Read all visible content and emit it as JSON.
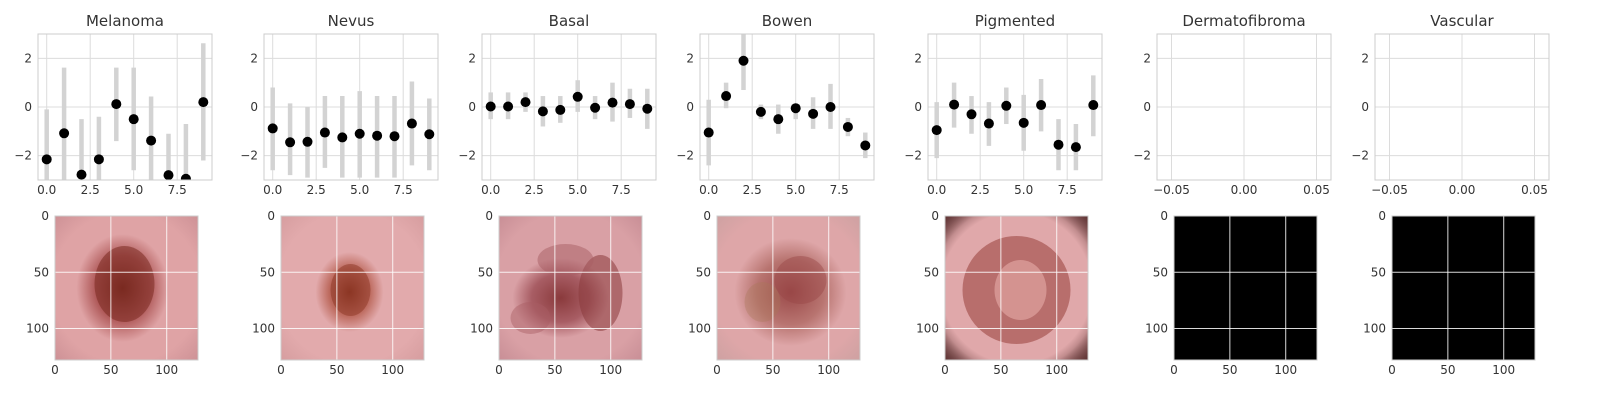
{
  "chart_data": [
    {
      "type": "scatter",
      "title": "Melanoma",
      "xlim": [
        -0.5,
        9.5
      ],
      "ylim": [
        -3,
        3
      ],
      "xticks": [
        0,
        2.5,
        5,
        7.5
      ],
      "xtick_labels": [
        "0.0",
        "2.5",
        "5.0",
        "7.5"
      ],
      "yticks": [
        -2,
        0,
        2
      ],
      "ytick_labels": [
        "−2",
        "0",
        "2"
      ],
      "x": [
        0,
        1,
        2,
        3,
        4,
        5,
        6,
        7,
        8,
        9
      ],
      "y": [
        -2.15,
        -1.08,
        -2.78,
        -2.15,
        0.12,
        -0.5,
        -1.38,
        -2.8,
        -2.95,
        0.2
      ],
      "err_low": [
        -3.0,
        -3.0,
        -3.0,
        -3.0,
        -1.4,
        -2.6,
        -3.0,
        -3.0,
        -3.0,
        -2.2
      ],
      "err_high": [
        -0.1,
        1.62,
        -0.5,
        -0.4,
        1.62,
        1.62,
        0.43,
        -1.1,
        -0.7,
        2.62
      ],
      "grid": true,
      "point_color": "#000000",
      "errorbar_color": "#d3d3d3"
    },
    {
      "type": "scatter",
      "title": "Nevus",
      "xlim": [
        -0.5,
        9.5
      ],
      "ylim": [
        -3,
        3
      ],
      "xticks": [
        0,
        2.5,
        5,
        7.5
      ],
      "xtick_labels": [
        "0.0",
        "2.5",
        "5.0",
        "7.5"
      ],
      "yticks": [
        -2,
        0,
        2
      ],
      "ytick_labels": [
        "−2",
        "0",
        "2"
      ],
      "x": [
        0,
        1,
        2,
        3,
        4,
        5,
        6,
        7,
        8,
        9
      ],
      "y": [
        -0.88,
        -1.45,
        -1.43,
        -1.05,
        -1.25,
        -1.1,
        -1.18,
        -1.2,
        -0.68,
        -1.12
      ],
      "err_low": [
        -2.6,
        -2.8,
        -2.9,
        -2.5,
        -2.9,
        -2.9,
        -2.9,
        -2.9,
        -2.4,
        -2.6
      ],
      "err_high": [
        0.8,
        0.15,
        0.0,
        0.45,
        0.45,
        0.65,
        0.45,
        0.45,
        1.05,
        0.35
      ],
      "grid": true,
      "point_color": "#000000",
      "errorbar_color": "#d3d3d3"
    },
    {
      "type": "scatter",
      "title": "Basal",
      "xlim": [
        -0.5,
        9.5
      ],
      "ylim": [
        -3,
        3
      ],
      "xticks": [
        0,
        2.5,
        5,
        7.5
      ],
      "xtick_labels": [
        "0.0",
        "2.5",
        "5.0",
        "7.5"
      ],
      "yticks": [
        -2,
        0,
        2
      ],
      "ytick_labels": [
        "−2",
        "0",
        "2"
      ],
      "x": [
        0,
        1,
        2,
        3,
        4,
        5,
        6,
        7,
        8,
        9
      ],
      "y": [
        0.02,
        0.02,
        0.2,
        -0.18,
        -0.12,
        0.42,
        -0.03,
        0.18,
        0.12,
        -0.07
      ],
      "err_low": [
        -0.5,
        -0.5,
        -0.2,
        -0.8,
        -0.65,
        -0.2,
        -0.5,
        -0.6,
        -0.45,
        -0.9
      ],
      "err_high": [
        0.6,
        0.6,
        0.6,
        0.45,
        0.45,
        1.1,
        0.45,
        1.0,
        0.75,
        0.75
      ],
      "grid": true,
      "point_color": "#000000",
      "errorbar_color": "#d3d3d3"
    },
    {
      "type": "scatter",
      "title": "Bowen",
      "xlim": [
        -0.5,
        9.5
      ],
      "ylim": [
        -3,
        3
      ],
      "xticks": [
        0,
        2.5,
        5,
        7.5
      ],
      "xtick_labels": [
        "0.0",
        "2.5",
        "5.0",
        "7.5"
      ],
      "yticks": [
        -2,
        0,
        2
      ],
      "ytick_labels": [
        "−2",
        "0",
        "2"
      ],
      "x": [
        0,
        1,
        2,
        3,
        4,
        5,
        6,
        7,
        8,
        9
      ],
      "y": [
        -1.05,
        0.45,
        1.9,
        -0.2,
        -0.5,
        -0.05,
        -0.28,
        0.0,
        -0.82,
        -1.58
      ],
      "err_low": [
        -2.4,
        -0.05,
        0.7,
        -0.5,
        -1.1,
        -0.5,
        -0.9,
        -0.9,
        -1.2,
        -2.1
      ],
      "err_high": [
        0.3,
        1.0,
        3.0,
        0.1,
        0.1,
        0.05,
        0.4,
        0.95,
        -0.45,
        -1.05
      ],
      "grid": true,
      "point_color": "#000000",
      "errorbar_color": "#d3d3d3"
    },
    {
      "type": "scatter",
      "title": "Pigmented",
      "xlim": [
        -0.5,
        9.5
      ],
      "ylim": [
        -3,
        3
      ],
      "xticks": [
        0,
        2.5,
        5,
        7.5
      ],
      "xtick_labels": [
        "0.0",
        "2.5",
        "5.0",
        "7.5"
      ],
      "yticks": [
        -2,
        0,
        2
      ],
      "ytick_labels": [
        "−2",
        "0",
        "2"
      ],
      "x": [
        0,
        1,
        2,
        3,
        4,
        5,
        6,
        7,
        8,
        9
      ],
      "y": [
        -0.95,
        0.1,
        -0.3,
        -0.68,
        0.05,
        -0.65,
        0.08,
        -1.55,
        -1.65,
        0.08
      ],
      "err_low": [
        -2.1,
        -0.85,
        -1.1,
        -1.6,
        -0.7,
        -1.8,
        -1.0,
        -2.6,
        -2.6,
        -1.2
      ],
      "err_high": [
        0.2,
        1.0,
        0.45,
        0.2,
        0.8,
        0.5,
        1.15,
        -0.5,
        -0.7,
        1.3
      ],
      "grid": true,
      "point_color": "#000000",
      "errorbar_color": "#d3d3d3"
    },
    {
      "type": "scatter",
      "title": "Dermatofibroma",
      "xlim": [
        -0.06,
        0.06
      ],
      "ylim": [
        -3,
        3
      ],
      "xticks": [
        -0.05,
        0,
        0.05
      ],
      "xtick_labels": [
        "−0.05",
        "0.00",
        "0.05"
      ],
      "yticks": [
        -2,
        0,
        2
      ],
      "ytick_labels": [
        "−2",
        "0",
        "2"
      ],
      "x": [],
      "y": [],
      "err_low": [],
      "err_high": [],
      "grid": true
    },
    {
      "type": "scatter",
      "title": "Vascular",
      "xlim": [
        -0.06,
        0.06
      ],
      "ylim": [
        -3,
        3
      ],
      "xticks": [
        -0.05,
        0,
        0.05
      ],
      "xtick_labels": [
        "−0.05",
        "0.00",
        "0.05"
      ],
      "yticks": [
        -2,
        0,
        2
      ],
      "ytick_labels": [
        "−2",
        "0",
        "2"
      ],
      "x": [],
      "y": [],
      "err_low": [],
      "err_high": [],
      "grid": true
    }
  ],
  "images": [
    {
      "kind": "lesion",
      "description": "pink skin with dark brown oval lesion",
      "xlim": [
        0,
        128
      ],
      "ylim": [
        128,
        0
      ],
      "xticks": [
        0,
        50,
        100
      ],
      "xtick_labels": [
        "0",
        "50",
        "100"
      ],
      "yticks": [
        0,
        50,
        100
      ],
      "ytick_labels": [
        "0",
        "50",
        "100"
      ],
      "colors": {
        "skin": "#dfa3a5",
        "edge": "#c98d92",
        "lesion_outer": "#b05a5a",
        "lesion_core": "#7a2a20"
      }
    },
    {
      "kind": "lesion",
      "description": "pink skin with brown oval lesion",
      "xlim": [
        0,
        128
      ],
      "ylim": [
        128,
        0
      ],
      "xticks": [
        0,
        50,
        100
      ],
      "xtick_labels": [
        "0",
        "50",
        "100"
      ],
      "yticks": [
        0,
        50,
        100
      ],
      "ytick_labels": [
        "0",
        "50",
        "100"
      ],
      "colors": {
        "skin": "#e2aaac",
        "edge": "#d39a9c",
        "lesion_outer": "#bd6a5e",
        "lesion_core": "#8c3624"
      }
    },
    {
      "kind": "lesion",
      "description": "blotchy pink and maroon texture",
      "xlim": [
        0,
        128
      ],
      "ylim": [
        128,
        0
      ],
      "xticks": [
        0,
        50,
        100
      ],
      "xtick_labels": [
        "0",
        "50",
        "100"
      ],
      "yticks": [
        0,
        50,
        100
      ],
      "ytick_labels": [
        "0",
        "50",
        "100"
      ],
      "colors": {
        "skin": "#d9a0a5",
        "edge": "#c48a92",
        "lesion_outer": "#a85d64",
        "lesion_core": "#8a3a3c"
      }
    },
    {
      "kind": "lesion",
      "description": "pink skin with large mottled reddish lesion",
      "xlim": [
        0,
        128
      ],
      "ylim": [
        128,
        0
      ],
      "xticks": [
        0,
        50,
        100
      ],
      "xtick_labels": [
        "0",
        "50",
        "100"
      ],
      "yticks": [
        0,
        50,
        100
      ],
      "ytick_labels": [
        "0",
        "50",
        "100"
      ],
      "colors": {
        "skin": "#dea6a8",
        "edge": "#caa0a0",
        "lesion_outer": "#b87470",
        "lesion_core": "#9a4848"
      }
    },
    {
      "kind": "lesion",
      "description": "pink skin with reddish ring lesion and darker corners",
      "xlim": [
        0,
        128
      ],
      "ylim": [
        128,
        0
      ],
      "xticks": [
        0,
        50,
        100
      ],
      "xtick_labels": [
        "0",
        "50",
        "100"
      ],
      "yticks": [
        0,
        50,
        100
      ],
      "ytick_labels": [
        "0",
        "50",
        "100"
      ],
      "colors": {
        "skin": "#e0a8aa",
        "edge": "#5a3030",
        "lesion_outer": "#b06462",
        "lesion_core": "#d89a96"
      }
    },
    {
      "kind": "black",
      "description": "solid black image",
      "xlim": [
        0,
        128
      ],
      "ylim": [
        128,
        0
      ],
      "xticks": [
        0,
        50,
        100
      ],
      "xtick_labels": [
        "0",
        "50",
        "100"
      ],
      "yticks": [
        0,
        50,
        100
      ],
      "ytick_labels": [
        "0",
        "50",
        "100"
      ],
      "colors": {
        "fill": "#000000"
      }
    },
    {
      "kind": "black",
      "description": "solid black image",
      "xlim": [
        0,
        128
      ],
      "ylim": [
        128,
        0
      ],
      "xticks": [
        0,
        50,
        100
      ],
      "xtick_labels": [
        "0",
        "50",
        "100"
      ],
      "yticks": [
        0,
        50,
        100
      ],
      "ytick_labels": [
        "0",
        "50",
        "100"
      ],
      "colors": {
        "fill": "#000000"
      }
    }
  ]
}
